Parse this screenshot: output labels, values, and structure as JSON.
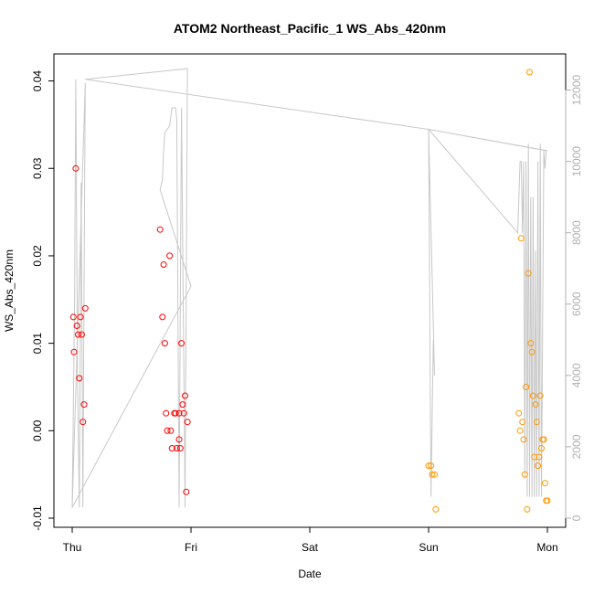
{
  "chart_data": {
    "type": "scatter",
    "title": "ATOM2 Northeast_Pacific_1 WS_Abs_420nm",
    "xlabel": "Date",
    "ylabel": "WS_Abs_420nm",
    "xlim": [
      0,
      4.0
    ],
    "ylim": [
      -0.01,
      0.041
    ],
    "y_ticks": [
      -0.01,
      0.0,
      0.01,
      0.02,
      0.03,
      0.04
    ],
    "y_tick_labels": [
      "-0.01",
      "0.00",
      "0.01",
      "0.02",
      "0.03",
      "0.04"
    ],
    "x_ticks": [
      0,
      1,
      2,
      3,
      4
    ],
    "x_tick_labels": [
      "Thu",
      "Fri",
      "Sat",
      "Sun",
      "Mon"
    ],
    "y2lim": [
      0,
      12500
    ],
    "y2_ticks": [
      0,
      2000,
      4000,
      6000,
      8000,
      10000,
      12000
    ],
    "y2_tick_labels": [
      "0",
      "2000",
      "4000",
      "6000",
      "8000",
      "10000",
      "12000"
    ],
    "grid": false,
    "series": [
      {
        "color": "#ff0000",
        "marker": "open-circle",
        "points": [
          [
            0.01,
            0.013
          ],
          [
            0.015,
            0.009
          ],
          [
            0.03,
            0.03
          ],
          [
            0.04,
            0.012
          ],
          [
            0.05,
            0.011
          ],
          [
            0.06,
            0.006
          ],
          [
            0.07,
            0.013
          ],
          [
            0.08,
            0.011
          ],
          [
            0.09,
            0.001
          ],
          [
            0.1,
            0.003
          ],
          [
            0.11,
            0.014
          ],
          [
            0.74,
            0.023
          ],
          [
            0.76,
            0.013
          ],
          [
            0.77,
            0.019
          ],
          [
            0.78,
            0.01
          ],
          [
            0.79,
            0.002
          ],
          [
            0.8,
            0.0
          ],
          [
            0.82,
            0.02
          ],
          [
            0.83,
            0.0
          ],
          [
            0.84,
            -0.002
          ],
          [
            0.86,
            0.002
          ],
          [
            0.87,
            0.002
          ],
          [
            0.88,
            -0.002
          ],
          [
            0.9,
            -0.001
          ],
          [
            0.9,
            0.002
          ],
          [
            0.91,
            -0.002
          ],
          [
            0.92,
            0.01
          ],
          [
            0.93,
            0.003
          ],
          [
            0.94,
            0.002
          ],
          [
            0.95,
            0.004
          ],
          [
            0.96,
            -0.007
          ],
          [
            0.97,
            0.001
          ]
        ]
      },
      {
        "color": "#ff9900",
        "marker": "open-circle",
        "points": [
          [
            3.0,
            -0.004
          ],
          [
            3.02,
            -0.004
          ],
          [
            3.03,
            -0.005
          ],
          [
            3.05,
            -0.005
          ],
          [
            3.06,
            -0.009
          ],
          [
            3.76,
            0.002
          ],
          [
            3.77,
            0.0
          ],
          [
            3.78,
            0.022
          ],
          [
            3.79,
            0.001
          ],
          [
            3.8,
            -0.001
          ],
          [
            3.81,
            -0.005
          ],
          [
            3.82,
            0.005
          ],
          [
            3.83,
            -0.009
          ],
          [
            3.84,
            0.018
          ],
          [
            3.85,
            0.041
          ],
          [
            3.86,
            0.01
          ],
          [
            3.87,
            0.009
          ],
          [
            3.88,
            0.004
          ],
          [
            3.89,
            -0.003
          ],
          [
            3.9,
            0.003
          ],
          [
            3.91,
            0.001
          ],
          [
            3.92,
            -0.004
          ],
          [
            3.93,
            -0.003
          ],
          [
            3.94,
            0.004
          ],
          [
            3.95,
            -0.002
          ],
          [
            3.96,
            -0.001
          ],
          [
            3.97,
            -0.001
          ],
          [
            3.98,
            -0.006
          ],
          [
            3.99,
            -0.008
          ],
          [
            4.0,
            -0.008
          ]
        ]
      },
      {
        "color": "#c8c8c8",
        "marker": "line",
        "axis": "right",
        "points": [
          [
            0.0,
            300
          ],
          [
            0.02,
            6000
          ],
          [
            0.03,
            12300
          ],
          [
            0.045,
            4000
          ],
          [
            0.06,
            300
          ],
          [
            0.075,
            9400
          ],
          [
            0.09,
            300
          ],
          [
            0.1,
            6500
          ],
          [
            0.11,
            12200
          ],
          [
            0.0,
            300
          ],
          [
            1.0,
            6500
          ],
          [
            0.74,
            9200
          ],
          [
            0.76,
            9500
          ],
          [
            0.77,
            10300
          ],
          [
            0.78,
            10800
          ],
          [
            0.8,
            10900
          ],
          [
            0.82,
            11000
          ],
          [
            0.84,
            11500
          ],
          [
            0.87,
            11500
          ],
          [
            0.88,
            11200
          ],
          [
            0.9,
            300
          ],
          [
            0.92,
            11500
          ],
          [
            0.95,
            300
          ],
          [
            0.97,
            12600
          ],
          [
            0.11,
            12300
          ],
          [
            3.0,
            10900
          ],
          [
            3.02,
            600
          ],
          [
            3.04,
            5000
          ],
          [
            3.05,
            4000
          ],
          [
            3.0,
            10900
          ],
          [
            3.75,
            8000
          ],
          [
            3.77,
            10000
          ],
          [
            3.78,
            10000
          ],
          [
            3.79,
            8000
          ],
          [
            3.8,
            10000
          ],
          [
            3.81,
            1100
          ],
          [
            3.82,
            10000
          ],
          [
            3.83,
            600
          ],
          [
            3.84,
            10500
          ],
          [
            3.85,
            600
          ],
          [
            3.86,
            9000
          ],
          [
            3.87,
            600
          ],
          [
            3.88,
            9000
          ],
          [
            3.89,
            600
          ],
          [
            3.9,
            7500
          ],
          [
            3.91,
            600
          ],
          [
            3.92,
            10000
          ],
          [
            3.93,
            600
          ],
          [
            3.94,
            10500
          ],
          [
            3.95,
            600
          ],
          [
            3.97,
            10300
          ],
          [
            3.98,
            9800
          ],
          [
            3.99,
            10300
          ],
          [
            3.0,
            10900
          ],
          [
            4.0,
            10300
          ]
        ]
      }
    ]
  }
}
